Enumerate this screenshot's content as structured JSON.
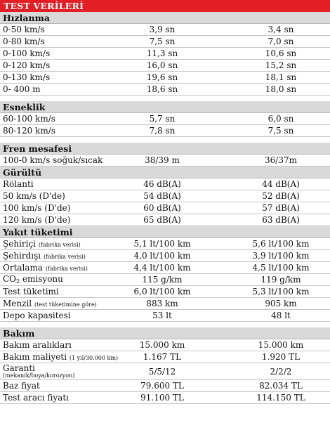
{
  "title": "TEST VERİLERİ",
  "sections": [
    {
      "name": "Hızlanma",
      "rows": [
        {
          "label": "0-50 km/s",
          "a": "3,9 sn",
          "b": "3,4 sn"
        },
        {
          "label": "0-80 km/s",
          "a": "7,5 sn",
          "b": "7,0 sn"
        },
        {
          "label": "0-100 km/s",
          "a": "11,3 sn",
          "b": "10,6 sn"
        },
        {
          "label": "0-120 km/s",
          "a": "16,0 sn",
          "b": "15,2 sn"
        },
        {
          "label": "0-130 km/s",
          "a": "19,6 sn",
          "b": "18,1 sn"
        },
        {
          "label": "0- 400 m",
          "a": "18,6 sn",
          "b": "18,0 sn"
        }
      ]
    },
    {
      "name": "Esneklik",
      "rows": [
        {
          "label": "60-100 km/s",
          "a": "5,7 sn",
          "b": "6,0 sn"
        },
        {
          "label": "80-120 km/s",
          "a": "7,8 sn",
          "b": "7,5 sn"
        }
      ]
    },
    {
      "name": "Fren mesafesi",
      "rows": [
        {
          "label": "100-0 km/s soğuk/sıcak",
          "a": "38/39 m",
          "b": "36/37m"
        }
      ]
    },
    {
      "name": "Gürültü",
      "rows": [
        {
          "label": "Rölanti",
          "a": "46 dB(A)",
          "b": "44 dB(A)"
        },
        {
          "label": "50 km/s (D'de)",
          "a": "54 dB(A)",
          "b": "52 dB(A)"
        },
        {
          "label": "100 km/s (D'de)",
          "a": "60 dB(A)",
          "b": "57 dB(A)"
        },
        {
          "label": "120 km/s (D'de)",
          "a": "65 dB(A)",
          "b": "63 dB(A)"
        }
      ]
    },
    {
      "name": "Yakıt tüketimi",
      "rows": [
        {
          "label": "Şehiriçi",
          "sub": "(fabrika verisi)",
          "a": "5,1 lt/100 km",
          "b": "5,6 lt/100 km"
        },
        {
          "label": "Şehirdışı",
          "sub": "(fabrika verisi)",
          "a": "4,0 lt/100 km",
          "b": "3,9 lt/100 km"
        },
        {
          "label": "Ortalama",
          "sub": "(fabrika verisi)",
          "a": "4,4 lt/100 km",
          "b": "4,5 lt/100 km"
        },
        {
          "label": "CO",
          "co2sub": "2",
          "tail": " emisyonu",
          "a": "115 g/km",
          "b": "119 g/km"
        },
        {
          "label": "Test tüketimi",
          "a": "6,0 lt/100 km",
          "b": "5,3 lt/100 km"
        },
        {
          "label": "Menzil",
          "sub": "(test tüketimine göre)",
          "a": "883 km",
          "b": "905 km"
        },
        {
          "label": "Depo kapasitesi",
          "a": "53 lt",
          "b": "48 lt"
        }
      ]
    },
    {
      "name": "Bakım",
      "rows": [
        {
          "label": "Bakım aralıkları",
          "a": "15.000 km",
          "b": "15.000 km"
        },
        {
          "label": "Bakım maliyeti",
          "sub": "(1 yıl/30.000 km)",
          "a": "1.167 TL",
          "b": "1.920 TL"
        },
        {
          "label": "Garanti",
          "subline": "(mekanik/boya/korozyon)",
          "a": "5/5/12",
          "b": "2/2/2"
        },
        {
          "label": "Baz fiyat",
          "a": "79.600 TL",
          "b": "82.034 TL"
        },
        {
          "label": "Test aracı fiyatı",
          "a": "91.100 TL",
          "b": "114.150 TL"
        }
      ]
    }
  ]
}
